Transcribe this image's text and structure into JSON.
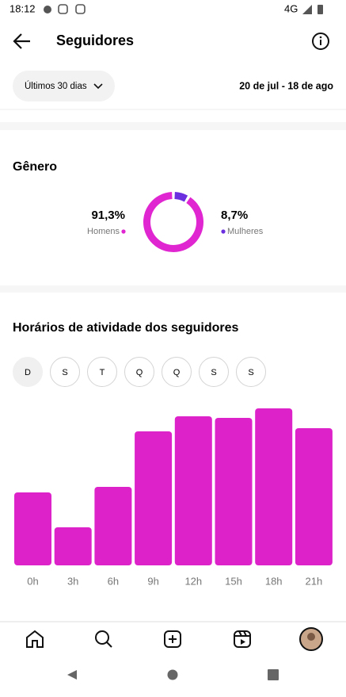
{
  "status_bar": {
    "time": "18:12",
    "network": "4G"
  },
  "header": {
    "title": "Seguidores"
  },
  "filter": {
    "period": "Últimos 30 dias",
    "date_range": "20 de jul - 18 de ago"
  },
  "day_tabs": [
    "D",
    "S",
    "T",
    "Q",
    "Q",
    "S",
    "S"
  ],
  "chart_data": [
    {
      "type": "pie",
      "title": "Gênero",
      "categories": [
        "Homens",
        "Mulheres"
      ],
      "values": [
        91.3,
        8.7
      ],
      "value_labels": [
        "91,3%",
        "8,7%"
      ],
      "colors": [
        "#e026d0",
        "#6b2fe0"
      ]
    },
    {
      "type": "bar",
      "title": "Horários de atividade dos seguidores",
      "categories": [
        "0h",
        "3h",
        "6h",
        "9h",
        "12h",
        "15h",
        "18h",
        "21h"
      ],
      "values": [
        92,
        48,
        99,
        169,
        188,
        186,
        198,
        173
      ],
      "color": "#dd22c9"
    }
  ]
}
